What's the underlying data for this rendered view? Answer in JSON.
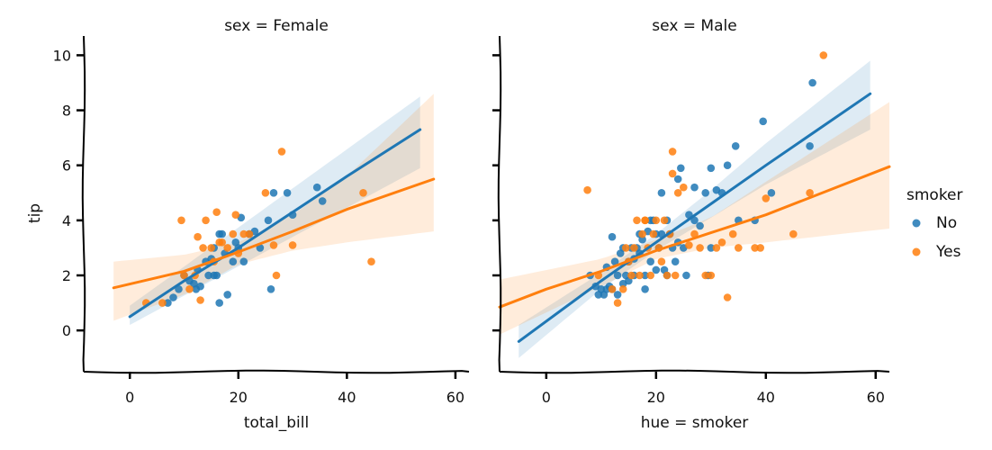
{
  "chart_data": {
    "type": "scatter",
    "ylabel": "tip",
    "ylim": [
      -1.5,
      10.7
    ],
    "yticks": [
      0,
      2,
      4,
      6,
      8,
      10
    ],
    "xticks": [
      0,
      20,
      40,
      60
    ],
    "legend": {
      "title": "smoker",
      "placement": "right",
      "entries": [
        {
          "label": "No",
          "color": "#1f77b4"
        },
        {
          "label": "Yes",
          "color": "#ff7f0e"
        }
      ]
    },
    "panels": [
      {
        "title": "sex = Female",
        "xlabel": "total_bill",
        "xlim": [
          -8.5,
          62.5
        ],
        "series": [
          {
            "name": "No",
            "color": "#1f77b4",
            "points": [
              [
                11.8,
                1.7
              ],
              [
                12.2,
                1.5
              ],
              [
                14.5,
                2.0
              ],
              [
                15.0,
                2.6
              ],
              [
                15.5,
                3.0
              ],
              [
                16.5,
                3.5
              ],
              [
                17.0,
                3.5
              ],
              [
                20.0,
                3.0
              ],
              [
                21.0,
                2.5
              ],
              [
                19.5,
                3.2
              ],
              [
                24.0,
                3.0
              ],
              [
                25.5,
                4.0
              ],
              [
                26.5,
                5.0
              ],
              [
                29.0,
                5.0
              ],
              [
                30.0,
                4.2
              ],
              [
                34.5,
                5.2
              ],
              [
                35.5,
                4.7
              ],
              [
                10.0,
                2.0
              ],
              [
                9.0,
                1.5
              ],
              [
                8.0,
                1.2
              ],
              [
                7.0,
                1.0
              ],
              [
                16.0,
                2.0
              ],
              [
                16.5,
                1.0
              ],
              [
                18.0,
                1.3
              ],
              [
                20.5,
                4.1
              ],
              [
                22.0,
                3.5
              ],
              [
                14.0,
                2.5
              ],
              [
                13.0,
                1.6
              ],
              [
                12.5,
                2.2
              ],
              [
                11.0,
                1.8
              ],
              [
                15.5,
                2.0
              ],
              [
                17.5,
                2.8
              ],
              [
                19.0,
                2.5
              ],
              [
                23.0,
                3.6
              ],
              [
                26.0,
                1.5
              ]
            ],
            "fit": {
              "x": [
                0,
                10,
                20,
                30,
                40,
                53.5
              ],
              "y": [
                0.5,
                1.8,
                3.0,
                4.3,
                5.6,
                7.3
              ]
            },
            "band": {
              "x": [
                0,
                53.5
              ],
              "lower": [
                0.2,
                5.9
              ],
              "upper": [
                0.9,
                8.5
              ]
            }
          },
          {
            "name": "Yes",
            "color": "#ff7f0e",
            "points": [
              [
                3.0,
                1.0
              ],
              [
                6.0,
                1.0
              ],
              [
                9.5,
                4.0
              ],
              [
                10.0,
                2.0
              ],
              [
                11.0,
                1.5
              ],
              [
                12.0,
                2.0
              ],
              [
                13.0,
                1.1
              ],
              [
                13.5,
                3.0
              ],
              [
                14.0,
                4.0
              ],
              [
                15.0,
                3.0
              ],
              [
                16.0,
                4.3
              ],
              [
                17.0,
                3.2
              ],
              [
                18.0,
                3.0
              ],
              [
                19.0,
                3.5
              ],
              [
                19.5,
                4.2
              ],
              [
                20.0,
                2.8
              ],
              [
                21.0,
                3.5
              ],
              [
                22.0,
                3.5
              ],
              [
                25.0,
                5.0
              ],
              [
                26.5,
                3.1
              ],
              [
                27.0,
                2.0
              ],
              [
                28.0,
                6.5
              ],
              [
                30.0,
                3.1
              ],
              [
                43.0,
                5.0
              ],
              [
                44.5,
                2.5
              ],
              [
                16.5,
                3.2
              ],
              [
                12.5,
                3.4
              ],
              [
                15.5,
                2.5
              ]
            ],
            "fit": {
              "x": [
                -3,
                10,
                20,
                30,
                40,
                56
              ],
              "y": [
                1.55,
                2.15,
                2.85,
                3.6,
                4.4,
                5.5
              ]
            },
            "band": {
              "x": [
                -3,
                10,
                20,
                30,
                40,
                56
              ],
              "lower": [
                0.35,
                1.3,
                2.4,
                2.9,
                3.2,
                3.6
              ],
              "upper": [
                2.5,
                2.75,
                3.2,
                4.2,
                5.6,
                8.6
              ]
            }
          }
        ]
      },
      {
        "title": "sex = Male",
        "xlabel": "hue = smoker",
        "xlim": [
          -8.5,
          62.5
        ],
        "series": [
          {
            "name": "No",
            "color": "#1f77b4",
            "points": [
              [
                8.0,
                2.0
              ],
              [
                9.0,
                1.6
              ],
              [
                10.0,
                1.5
              ],
              [
                10.5,
                1.3
              ],
              [
                11.0,
                1.5
              ],
              [
                11.5,
                1.6
              ],
              [
                12.0,
                1.5
              ],
              [
                12.5,
                2.5
              ],
              [
                13.0,
                2.0
              ],
              [
                13.5,
                2.8
              ],
              [
                14.0,
                3.0
              ],
              [
                14.5,
                2.0
              ],
              [
                15.0,
                2.5
              ],
              [
                15.5,
                3.0
              ],
              [
                16.0,
                2.0
              ],
              [
                16.5,
                3.0
              ],
              [
                17.0,
                3.5
              ],
              [
                17.5,
                3.3
              ],
              [
                18.0,
                2.0
              ],
              [
                18.5,
                3.6
              ],
              [
                19.0,
                2.5
              ],
              [
                19.5,
                4.0
              ],
              [
                20.0,
                3.5
              ],
              [
                20.5,
                3.0
              ],
              [
                21.0,
                3.5
              ],
              [
                21.5,
                2.2
              ],
              [
                22.0,
                4.0
              ],
              [
                22.5,
                3.5
              ],
              [
                23.0,
                3.0
              ],
              [
                23.5,
                2.5
              ],
              [
                24.0,
                3.2
              ],
              [
                24.5,
                5.9
              ],
              [
                25.0,
                3.0
              ],
              [
                25.5,
                2.0
              ],
              [
                26.0,
                4.2
              ],
              [
                27.0,
                4.0
              ],
              [
                28.0,
                3.8
              ],
              [
                29.0,
                5.0
              ],
              [
                30.0,
                3.0
              ],
              [
                31.0,
                5.1
              ],
              [
                32.0,
                5.0
              ],
              [
                33.0,
                6.0
              ],
              [
                34.5,
                6.7
              ],
              [
                35.0,
                4.0
              ],
              [
                38.0,
                4.0
              ],
              [
                39.5,
                7.6
              ],
              [
                41.0,
                5.0
              ],
              [
                48.5,
                9.0
              ],
              [
                48.0,
                6.7
              ],
              [
                12.0,
                3.4
              ],
              [
                16.0,
                2.6
              ],
              [
                19.0,
                4.0
              ],
              [
                21.0,
                5.0
              ],
              [
                15.0,
                1.8
              ],
              [
                13.0,
                1.3
              ],
              [
                17.0,
                2.8
              ],
              [
                18.0,
                1.5
              ],
              [
                22.0,
                2.0
              ],
              [
                27.0,
                5.2
              ],
              [
                30.0,
                5.9
              ],
              [
                29.5,
                2.0
              ],
              [
                24.0,
                5.5
              ],
              [
                20.0,
                2.2
              ],
              [
                11.0,
                2.3
              ],
              [
                14.0,
                1.7
              ],
              [
                9.5,
                1.3
              ]
            ],
            "fit": {
              "x": [
                -5,
                10,
                20,
                30,
                40,
                59
              ],
              "y": [
                -0.4,
                1.8,
                3.2,
                4.6,
                6.0,
                8.6
              ]
            },
            "band": {
              "x": [
                -5,
                10,
                20,
                30,
                40,
                59
              ],
              "lower": [
                -1.0,
                1.5,
                2.9,
                4.1,
                5.3,
                7.3
              ],
              "upper": [
                0.2,
                2.1,
                3.5,
                5.1,
                6.8,
                9.8
              ]
            }
          },
          {
            "name": "Yes",
            "color": "#ff7f0e",
            "points": [
              [
                7.5,
                5.1
              ],
              [
                9.5,
                2.0
              ],
              [
                12.0,
                1.5
              ],
              [
                13.0,
                1.0
              ],
              [
                14.0,
                1.5
              ],
              [
                15.0,
                2.5
              ],
              [
                15.5,
                2.0
              ],
              [
                16.0,
                3.0
              ],
              [
                16.5,
                4.0
              ],
              [
                17.0,
                2.0
              ],
              [
                17.5,
                3.5
              ],
              [
                18.0,
                4.0
              ],
              [
                18.5,
                3.0
              ],
              [
                19.0,
                2.0
              ],
              [
                19.5,
                3.5
              ],
              [
                20.0,
                4.0
              ],
              [
                20.5,
                3.0
              ],
              [
                21.0,
                2.5
              ],
              [
                21.5,
                4.0
              ],
              [
                22.0,
                2.0
              ],
              [
                22.5,
                3.5
              ],
              [
                23.0,
                6.5
              ],
              [
                23.5,
                2.0
              ],
              [
                24.0,
                5.0
              ],
              [
                25.0,
                5.2
              ],
              [
                26.0,
                3.1
              ],
              [
                27.0,
                3.5
              ],
              [
                28.0,
                3.0
              ],
              [
                29.0,
                2.0
              ],
              [
                30.0,
                2.0
              ],
              [
                31.0,
                3.0
              ],
              [
                32.0,
                3.2
              ],
              [
                33.0,
                1.2
              ],
              [
                34.0,
                3.5
              ],
              [
                35.0,
                3.0
              ],
              [
                38.0,
                3.0
              ],
              [
                39.0,
                3.0
              ],
              [
                40.0,
                4.8
              ],
              [
                45.0,
                3.5
              ],
              [
                48.0,
                5.0
              ],
              [
                50.5,
                10.0
              ],
              [
                23.0,
                5.7
              ],
              [
                18.0,
                4.0
              ],
              [
                14.5,
                3.0
              ]
            ],
            "fit": {
              "x": [
                -8.5,
                0,
                10,
                20,
                30,
                40,
                62.5
              ],
              "y": [
                0.85,
                1.5,
                2.15,
                2.9,
                3.55,
                4.2,
                5.95
              ]
            },
            "band": {
              "x": [
                -8.5,
                10,
                20,
                30,
                40,
                62.5
              ],
              "lower": [
                -0.15,
                1.6,
                2.6,
                3.0,
                3.2,
                3.7
              ],
              "upper": [
                1.85,
                2.6,
                3.3,
                4.1,
                5.4,
                8.3
              ]
            }
          }
        ]
      }
    ]
  }
}
